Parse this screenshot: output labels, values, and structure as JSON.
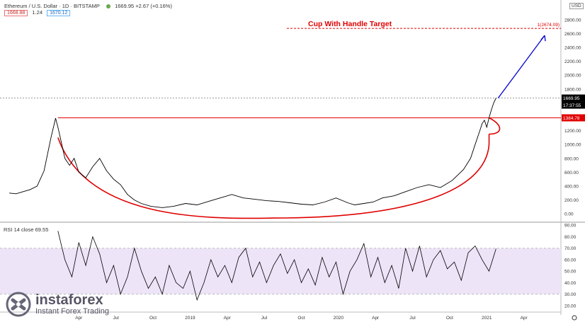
{
  "header": {
    "symbol": "Ethereum / U.S. Dollar · 1D · BITSTAMP",
    "price_change": "1669.95 +2.67 (+0.16%)",
    "bid": "1668.88",
    "spread": "1.24",
    "ask": "1670.12",
    "currency_button": "USD"
  },
  "annotation": {
    "title": "Cup With Handle Target",
    "target_label": "1(2674.09)",
    "target_value": 2674.09,
    "neckline_value": 1384.78
  },
  "price_scale": {
    "last_price": "1669.95",
    "last_price_value": 1669.95,
    "countdown": "17:37:55",
    "neckline_label": "1384.78"
  },
  "rsi": {
    "label": "RSI 14 close",
    "value": "69.55"
  },
  "colors": {
    "price_line": "#000000",
    "cup": "#e00000",
    "arrow": "#0000cc",
    "rsi_band": "#ede4f8"
  },
  "logo": {
    "name": "instaforex",
    "tagline": "Instant Forex Trading"
  },
  "chart_data": [
    {
      "type": "line",
      "title": "Ethereum / U.S. Dollar · 1D · BITSTAMP",
      "ylim": [
        -100,
        2900
      ],
      "y_ticks": [
        0,
        200,
        400,
        600,
        800,
        1000,
        1200,
        1400,
        1600,
        1800,
        2000,
        2200,
        2400,
        2600,
        2800
      ],
      "y_tick_labels": [
        "0.00",
        "200.00",
        "400.00",
        "600.00",
        "800.00",
        "1000.00",
        "1200.00",
        "1400.00",
        "1600.00",
        "1800.00",
        "2000.00",
        "2200.00",
        "2400.00",
        "2600.00",
        "2800.00"
      ],
      "x_tick_labels": [
        "Apr",
        "Jul",
        "Oct",
        "2019",
        "Apr",
        "Jul",
        "Oct",
        "2020",
        "Apr",
        "Jul",
        "Oct",
        "2021",
        "Apr"
      ],
      "x_tick_pos": [
        0.09,
        0.25,
        0.41,
        0.57,
        0.73,
        0.89,
        1.05,
        1.21,
        1.37,
        1.53,
        1.69,
        1.85,
        2.01
      ],
      "xlim": [
        -0.25,
        2.17
      ],
      "series": [
        {
          "name": "ETHUSD",
          "x": [
            -0.21,
            -0.18,
            -0.15,
            -0.12,
            -0.09,
            -0.06,
            -0.03,
            -0.01,
            0.0,
            0.01,
            0.03,
            0.05,
            0.07,
            0.09,
            0.12,
            0.15,
            0.18,
            0.21,
            0.24,
            0.27,
            0.3,
            0.33,
            0.36,
            0.4,
            0.45,
            0.5,
            0.55,
            0.6,
            0.65,
            0.7,
            0.75,
            0.8,
            0.85,
            0.9,
            0.95,
            1.0,
            1.05,
            1.1,
            1.15,
            1.2,
            1.25,
            1.28,
            1.32,
            1.36,
            1.4,
            1.45,
            1.5,
            1.55,
            1.6,
            1.65,
            1.7,
            1.75,
            1.78,
            1.8,
            1.82,
            1.83,
            1.84,
            1.85,
            1.86,
            1.87,
            1.88,
            1.89
          ],
          "y": [
            300,
            290,
            320,
            350,
            400,
            620,
            1100,
            1380,
            1250,
            1100,
            800,
            700,
            800,
            600,
            520,
            680,
            800,
            620,
            500,
            420,
            280,
            200,
            150,
            110,
            90,
            110,
            150,
            130,
            180,
            230,
            280,
            230,
            210,
            190,
            180,
            160,
            140,
            130,
            170,
            230,
            160,
            130,
            150,
            170,
            230,
            260,
            320,
            380,
            420,
            380,
            480,
            640,
            800,
            1000,
            1200,
            1300,
            1350,
            1250,
            1384.78,
            1500,
            1600,
            1669.95
          ]
        }
      ]
    },
    {
      "type": "line",
      "title": "RSI 14 close",
      "ylim": [
        15,
        92
      ],
      "band": [
        30,
        70
      ],
      "y_ticks": [
        20,
        30,
        40,
        50,
        60,
        70,
        80,
        90
      ],
      "y_tick_labels": [
        "20.00",
        "30.00",
        "40.00",
        "50.00",
        "60.00",
        "70.00",
        "80.00",
        "90.00"
      ],
      "series": [
        {
          "name": "RSI",
          "x": [
            0.0,
            0.03,
            0.06,
            0.09,
            0.12,
            0.15,
            0.18,
            0.21,
            0.24,
            0.27,
            0.3,
            0.33,
            0.36,
            0.39,
            0.42,
            0.45,
            0.48,
            0.51,
            0.54,
            0.57,
            0.6,
            0.63,
            0.66,
            0.69,
            0.72,
            0.75,
            0.78,
            0.81,
            0.84,
            0.87,
            0.9,
            0.93,
            0.96,
            0.99,
            1.02,
            1.05,
            1.08,
            1.11,
            1.14,
            1.17,
            1.2,
            1.23,
            1.26,
            1.29,
            1.32,
            1.35,
            1.38,
            1.41,
            1.44,
            1.47,
            1.5,
            1.53,
            1.56,
            1.59,
            1.62,
            1.65,
            1.68,
            1.71,
            1.74,
            1.77,
            1.8,
            1.83,
            1.86,
            1.89
          ],
          "y": [
            85,
            60,
            45,
            75,
            55,
            80,
            65,
            40,
            55,
            30,
            45,
            70,
            50,
            35,
            45,
            30,
            55,
            40,
            35,
            50,
            25,
            40,
            60,
            45,
            55,
            40,
            62,
            70,
            45,
            58,
            40,
            55,
            65,
            48,
            60,
            40,
            52,
            38,
            62,
            45,
            58,
            30,
            50,
            60,
            74,
            45,
            62,
            40,
            55,
            35,
            70,
            50,
            72,
            45,
            60,
            68,
            52,
            58,
            42,
            66,
            72,
            60,
            50,
            69.55
          ]
        }
      ]
    }
  ]
}
